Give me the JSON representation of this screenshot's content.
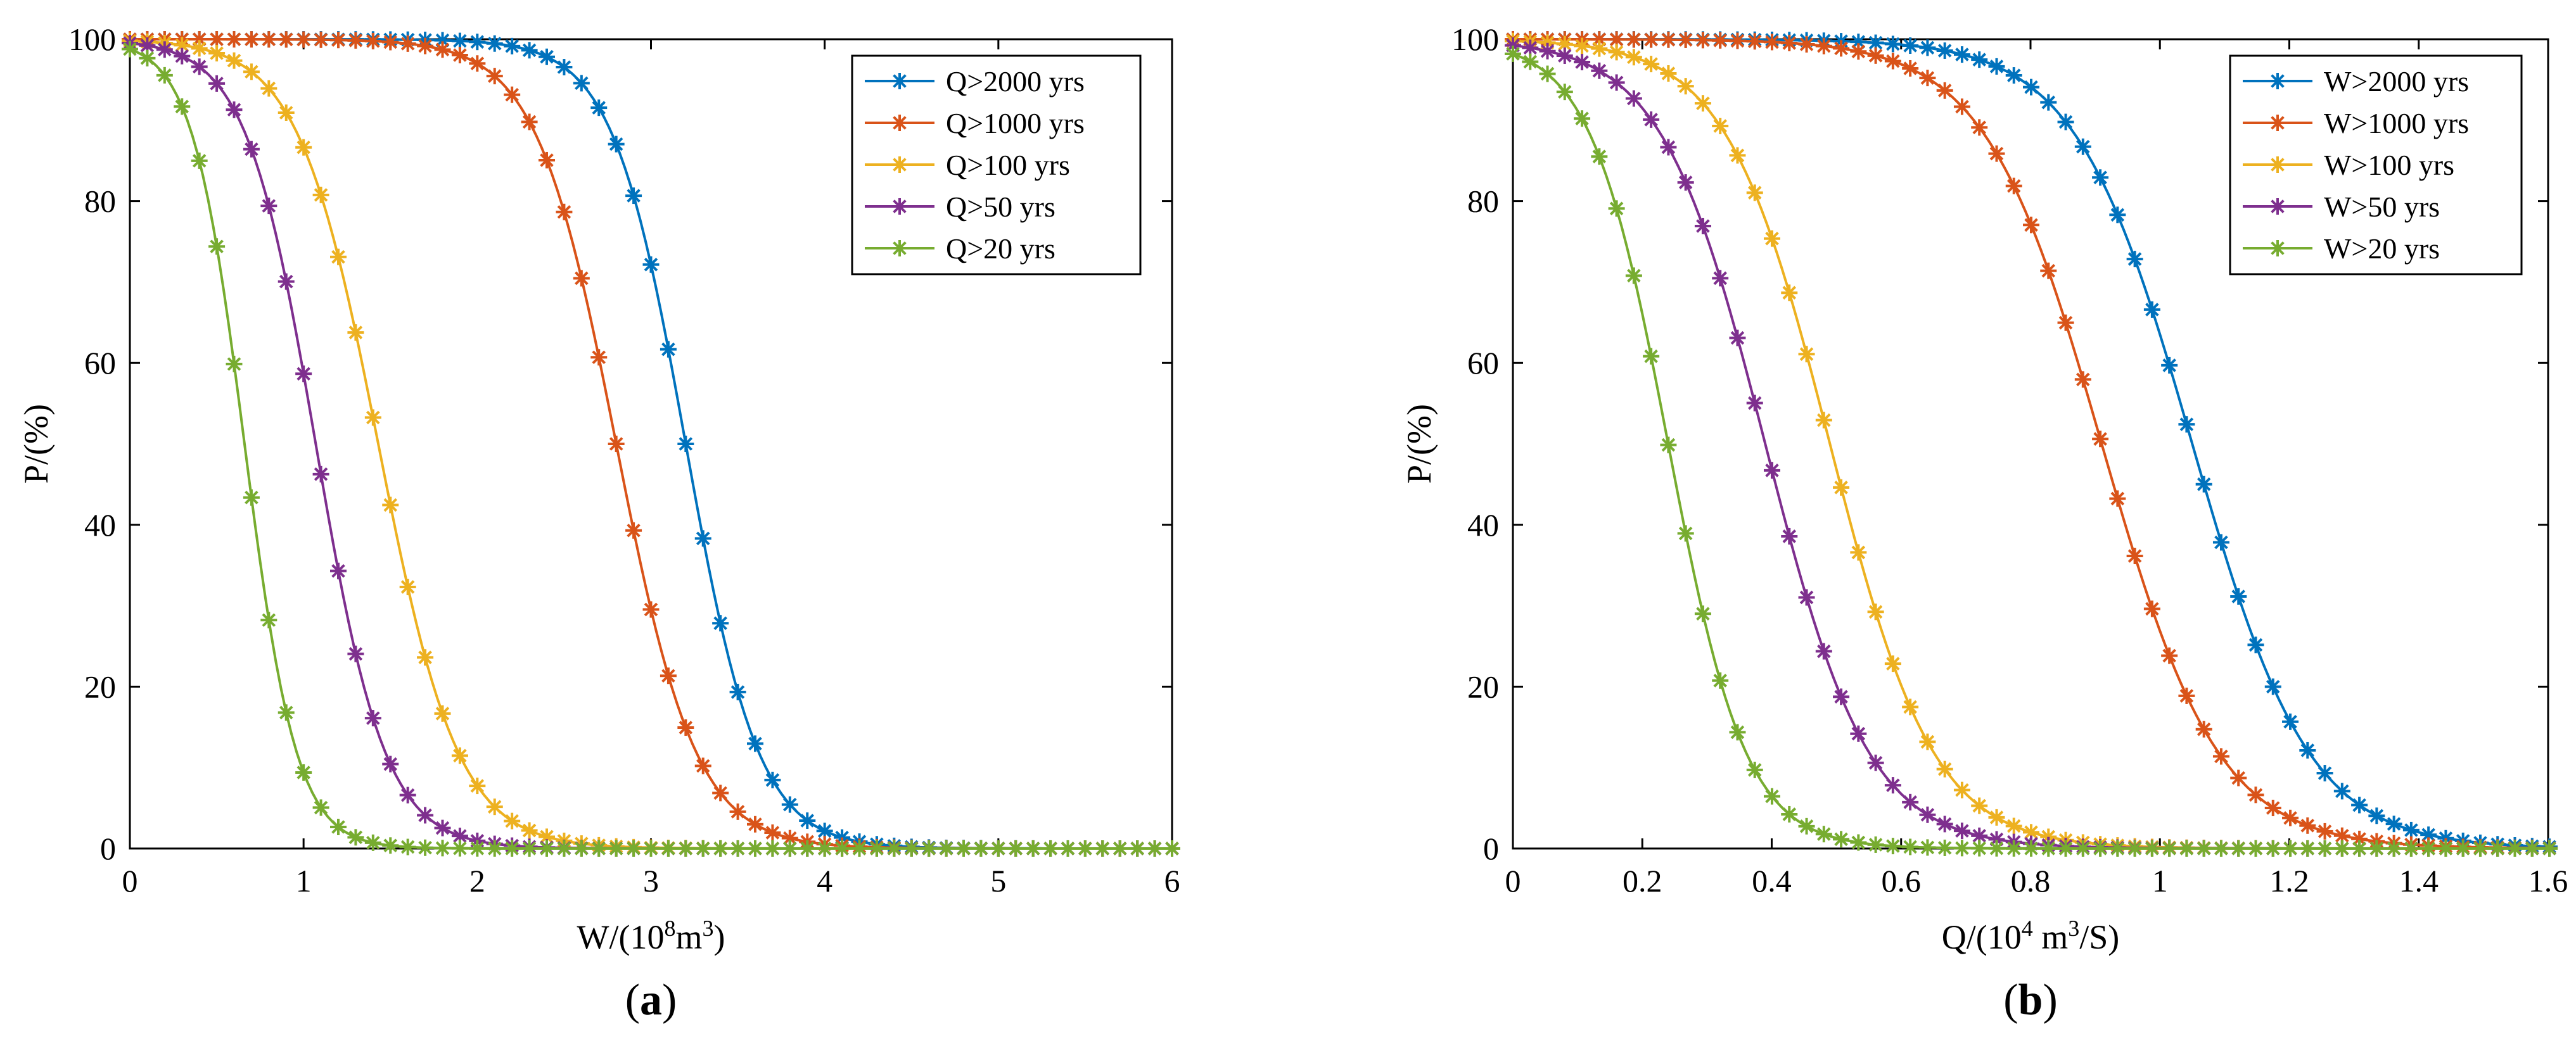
{
  "chart_data": [
    {
      "type": "line",
      "panel": "(a)",
      "panel_letter": "a",
      "title": "",
      "xlabel": "W/(10^8 m^3)",
      "xlabel_base": "W/(10",
      "xlabel_sup": "8",
      "xlabel_rest": "m",
      "xlabel_sup2": "3",
      "xlabel_end": ")",
      "ylabel": "P/(%)",
      "xlim": [
        0,
        6
      ],
      "ylim": [
        0,
        100
      ],
      "xticks": [
        "0",
        "1",
        "2",
        "3",
        "4",
        "5",
        "6"
      ],
      "yticks": [
        "0",
        "20",
        "40",
        "60",
        "80",
        "100"
      ],
      "xtick_values": [
        0,
        1,
        2,
        3,
        4,
        5,
        6
      ],
      "ytick_values": [
        0,
        20,
        40,
        60,
        80,
        100
      ],
      "grid": false,
      "legend_position": "top-right",
      "marker_step": 0.1,
      "series": [
        {
          "name": "Q>2000 yrs",
          "color": "#0072BD",
          "midpoint": 3.2,
          "scale": 0.21
        },
        {
          "name": "Q>1000 yrs",
          "color": "#D95319",
          "midpoint": 2.8,
          "scale": 0.23
        },
        {
          "name": "Q>100 yrs",
          "color": "#EDB120",
          "midpoint": 1.43,
          "scale": 0.23
        },
        {
          "name": "Q>50 yrs",
          "color": "#7E2F8E",
          "midpoint": 1.07,
          "scale": 0.2
        },
        {
          "name": "Q>20 yrs",
          "color": "#77AC30",
          "midpoint": 0.66,
          "scale": 0.15
        }
      ]
    },
    {
      "type": "line",
      "panel": "(b)",
      "panel_letter": "b",
      "title": "",
      "xlabel": "Q/(10^4 m^3/S)",
      "xlabel_base": "Q/(10",
      "xlabel_sup": "4",
      "xlabel_rest": " m",
      "xlabel_sup2": "3",
      "xlabel_end": "/S)",
      "ylabel": "P/(%)",
      "xlim": [
        0,
        1.6
      ],
      "ylim": [
        0,
        100
      ],
      "xticks": [
        "0",
        "0.2",
        "0.4",
        "0.6",
        "0.8",
        "1",
        "1.2",
        "1.4",
        "1.6"
      ],
      "yticks": [
        "0",
        "20",
        "40",
        "60",
        "80",
        "100"
      ],
      "xtick_values": [
        0,
        0.2,
        0.4,
        0.6,
        0.8,
        1.0,
        1.2,
        1.4,
        1.6
      ],
      "ytick_values": [
        0,
        20,
        40,
        60,
        80,
        100
      ],
      "grid": false,
      "legend_position": "top-right",
      "marker_step": 0.0267,
      "series": [
        {
          "name": "W>2000 yrs",
          "color": "#0072BD",
          "midpoint": 1.05,
          "scale": 0.09
        },
        {
          "name": "W>1000 yrs",
          "color": "#D95319",
          "midpoint": 0.91,
          "scale": 0.09
        },
        {
          "name": "W>100 yrs",
          "color": "#EDB120",
          "midpoint": 0.49,
          "scale": 0.08
        },
        {
          "name": "W>50 yrs",
          "color": "#7E2F8E",
          "midpoint": 0.39,
          "scale": 0.08
        },
        {
          "name": "W>20 yrs",
          "color": "#77AC30",
          "midpoint": 0.24,
          "scale": 0.06
        }
      ]
    }
  ]
}
